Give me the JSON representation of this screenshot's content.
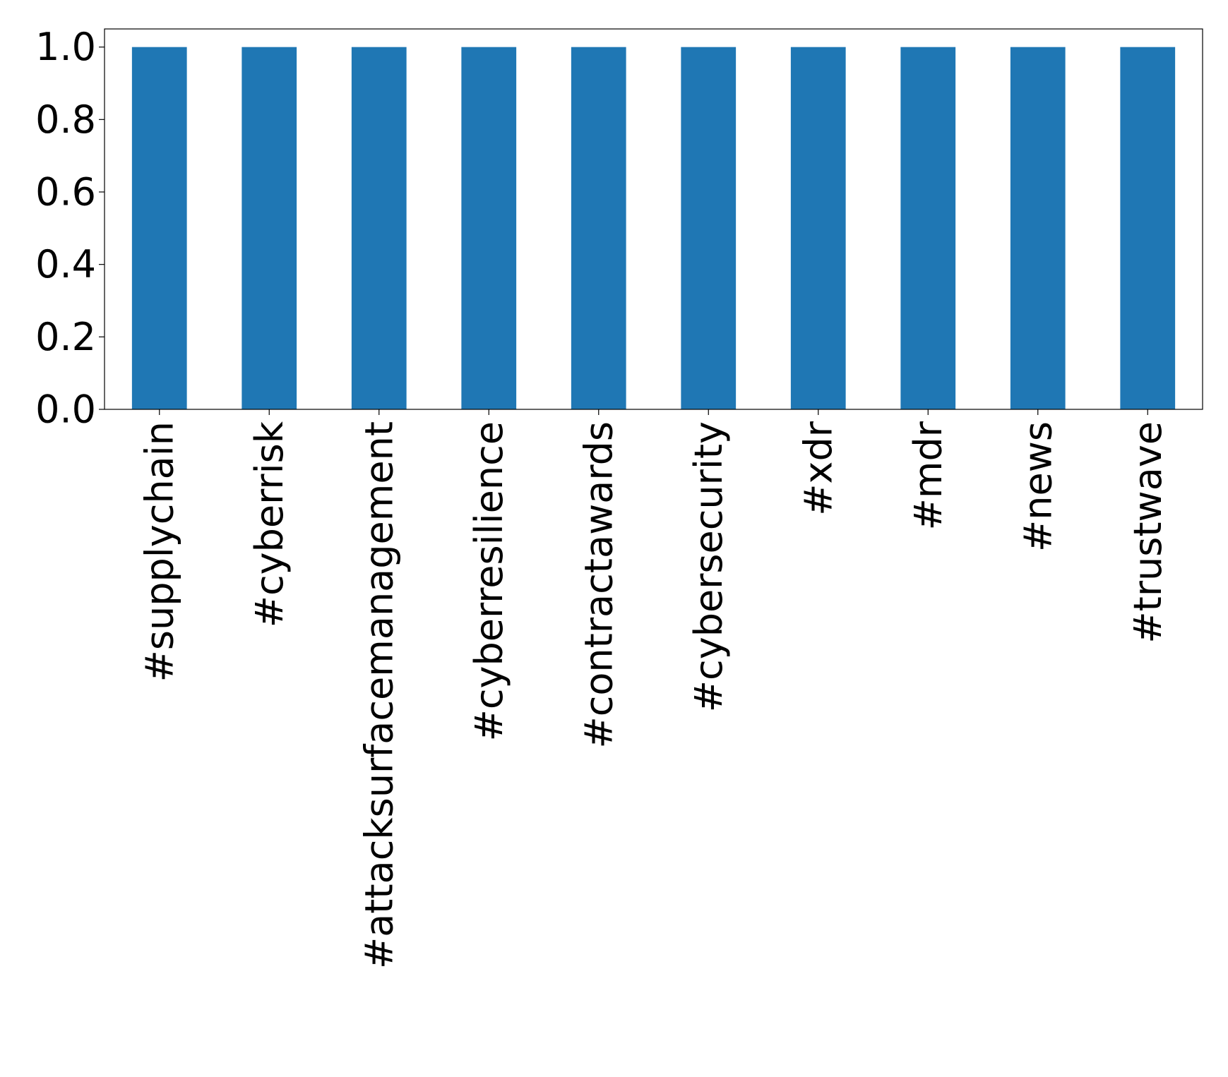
{
  "chart_data": {
    "type": "bar",
    "title": "",
    "xlabel": "",
    "ylabel": "",
    "categories": [
      "#supplychain",
      "#cyberrisk",
      "#attacksurfacemanagement",
      "#cyberresilience",
      "#contractawards",
      "#cybersecurity",
      "#xdr",
      "#mdr",
      "#news",
      "#trustwave"
    ],
    "values": [
      1,
      1,
      1,
      1,
      1,
      1,
      1,
      1,
      1,
      1
    ],
    "ylim": [
      0,
      1.05
    ],
    "yticks": [
      "0.0",
      "0.2",
      "0.4",
      "0.6",
      "0.8",
      "1.0"
    ],
    "grid": false,
    "legend": "none",
    "bar_color": "#1f77b4"
  }
}
